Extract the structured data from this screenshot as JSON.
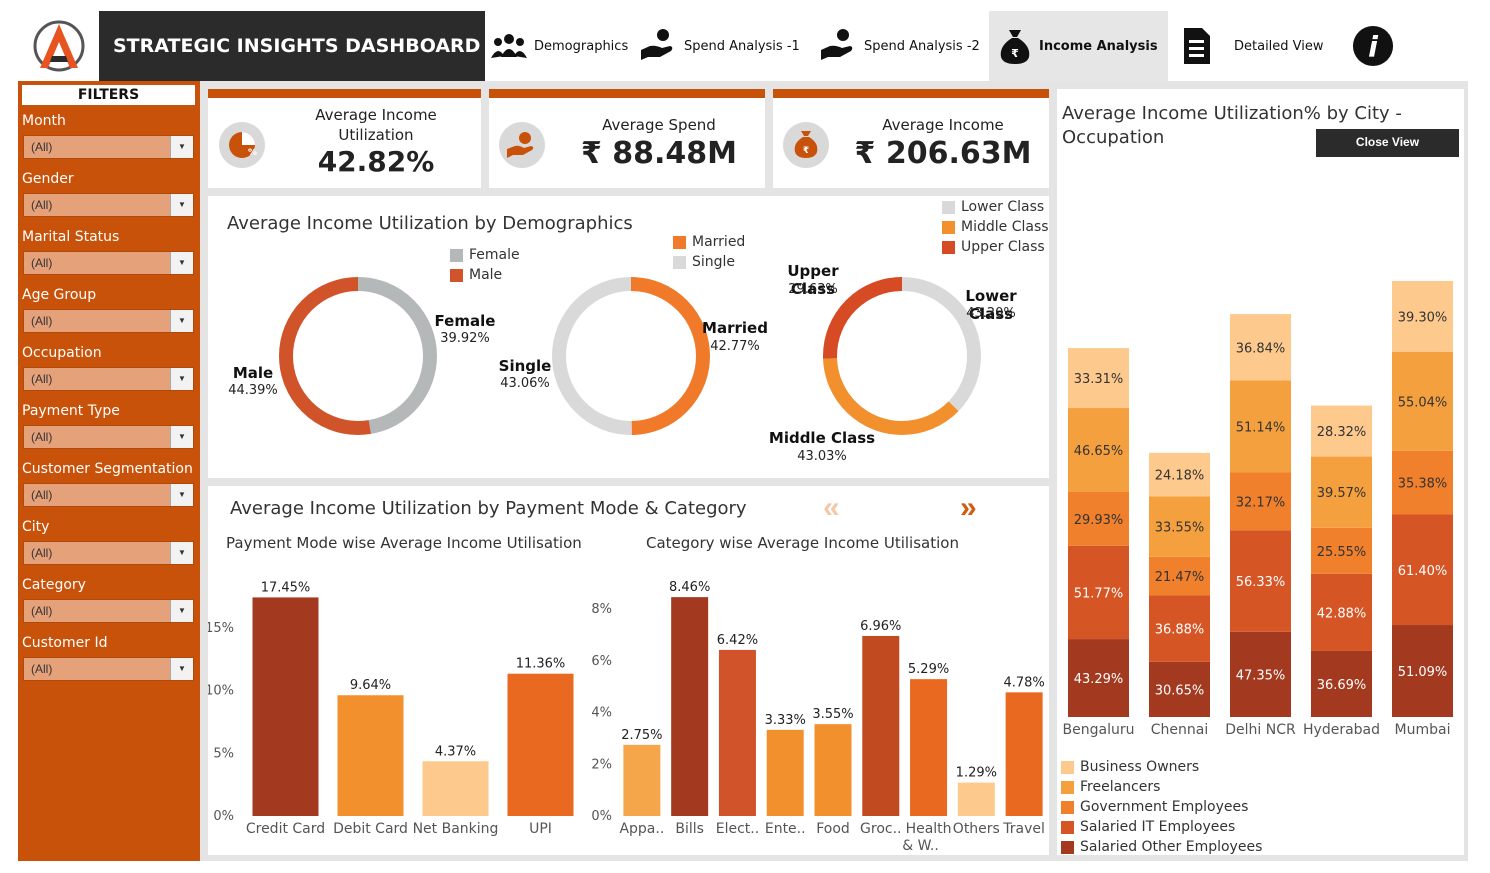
{
  "header": {
    "title": "STRATEGIC INSIGHTS DASHBOARD",
    "tabs": [
      {
        "label": "Demographics",
        "icon": "people-icon"
      },
      {
        "label": "Spend Analysis -1",
        "icon": "hand-coin-icon"
      },
      {
        "label": "Spend Analysis -2",
        "icon": "hand-coin-icon"
      },
      {
        "label": "Income Analysis",
        "icon": "money-bag-icon",
        "active": true
      },
      {
        "label": "Detailed View",
        "icon": "document-icon"
      },
      {
        "label": "",
        "icon": "info-icon"
      }
    ]
  },
  "filters": {
    "title": "FILTERS",
    "items": [
      {
        "label": "Month",
        "value": "(All)"
      },
      {
        "label": "Gender",
        "value": "(All)"
      },
      {
        "label": "Marital Status",
        "value": "(All)"
      },
      {
        "label": "Age Group",
        "value": "(All)"
      },
      {
        "label": "Occupation",
        "value": "(All)"
      },
      {
        "label": "Payment Type",
        "value": "(All)"
      },
      {
        "label": "Customer Segmentation",
        "value": "(All)"
      },
      {
        "label": "City",
        "value": "(All)"
      },
      {
        "label": "Category",
        "value": "(All)"
      },
      {
        "label": "Customer Id",
        "value": "(All)"
      }
    ]
  },
  "kpis": [
    {
      "title1": "Average Income",
      "title2": "Utilization",
      "value": "42.82%",
      "icon": "pie-percent-icon"
    },
    {
      "title1": "Average Spend",
      "title2": "",
      "value": "₹ 88.48M",
      "icon": "hand-coin-icon"
    },
    {
      "title1": "Average Income",
      "title2": "",
      "value": "₹ 206.63M",
      "icon": "money-bag-icon"
    }
  ],
  "colors": {
    "accent": "#c8520a",
    "dark": "#2b2b2b",
    "female": "#b5b8b9",
    "male": "#d0532a",
    "married": "#f07a2a",
    "single": "#d9d9d9",
    "lower": "#d9d9d9",
    "middle": "#f2902e",
    "upper": "#d64a24"
  },
  "demographics": {
    "title": "Average Income Utilization by Demographics",
    "gender": {
      "legend": [
        "Female",
        "Male"
      ],
      "labels": [
        {
          "name": "Female",
          "value": "39.92%"
        },
        {
          "name": "Male",
          "value": "44.39%"
        }
      ],
      "values": [
        39.92,
        44.39
      ]
    },
    "marital": {
      "legend": [
        "Married",
        "Single"
      ],
      "labels": [
        {
          "name": "Married",
          "value": "42.77%"
        },
        {
          "name": "Single",
          "value": "43.06%"
        }
      ],
      "values": [
        42.77,
        43.06
      ]
    },
    "class": {
      "legend": [
        "Lower Class",
        "Middle Class",
        "Upper Class"
      ],
      "labels": [
        {
          "name": "Upper Class",
          "value": "29.63%"
        },
        {
          "name": "Lower Class",
          "value": "43.20%"
        },
        {
          "name": "Middle Class",
          "value": "43.03%"
        }
      ],
      "values": [
        43.2,
        43.03,
        29.63
      ]
    }
  },
  "payment": {
    "title": "Average Income Utilization by Payment Mode & Category",
    "sub1": "Payment Mode wise Average Income Utilisation",
    "sub2": "Category wise Average Income Utilisation",
    "nav_prev": "«",
    "nav_next": "»"
  },
  "city": {
    "title1": "Average Income Utilization% by City -",
    "title2": "Occupation",
    "close_label": "Close View"
  },
  "chart_data": [
    {
      "type": "bar",
      "title": "Payment Mode wise Average Income Utilisation",
      "categories": [
        "Credit Card",
        "Debit Card",
        "Net Banking",
        "UPI"
      ],
      "values": [
        17.45,
        9.64,
        4.37,
        11.36
      ],
      "labels": [
        "17.45%",
        "9.64%",
        "4.37%",
        "11.36%"
      ],
      "yticks": [
        "0%",
        "5%",
        "10%",
        "15%"
      ],
      "ylim": [
        0,
        19
      ],
      "colors": [
        "#a33a20",
        "#f2902e",
        "#fdc98c",
        "#e8691f"
      ]
    },
    {
      "type": "bar",
      "title": "Category wise Average Income Utilisation",
      "categories": [
        "Appa..",
        "Bills",
        "Elect..",
        "Ente..",
        "Food",
        "Groc..",
        "Health & W..",
        "Others",
        "Travel"
      ],
      "values": [
        2.75,
        8.46,
        6.42,
        3.33,
        3.55,
        6.96,
        5.29,
        1.29,
        4.78
      ],
      "labels": [
        "2.75%",
        "8.46%",
        "6.42%",
        "3.33%",
        "3.55%",
        "6.96%",
        "5.29%",
        "1.29%",
        "4.78%"
      ],
      "yticks": [
        "0%",
        "2%",
        "4%",
        "6%",
        "8%"
      ],
      "ylim": [
        0,
        9.2
      ],
      "colors": [
        "#f5a64a",
        "#a33a20",
        "#d0532a",
        "#f2902e",
        "#f2902e",
        "#c24a20",
        "#e8691f",
        "#fdc98c",
        "#e8691f"
      ]
    },
    {
      "type": "bar",
      "stacked": true,
      "title": "Average Income Utilization% by City - Occupation",
      "categories": [
        "Bengaluru",
        "Chennai",
        "Delhi NCR",
        "Hyderabad",
        "Mumbai"
      ],
      "series": [
        {
          "name": "Salaried Other Employees",
          "color": "#a33a20",
          "values": [
            43.29,
            30.65,
            47.35,
            36.69,
            51.09
          ],
          "labels": [
            "43.29%",
            "30.65%",
            "47.35%",
            "36.69%",
            "51.09%"
          ]
        },
        {
          "name": "Salaried IT Employees",
          "color": "#d55525",
          "values": [
            51.77,
            36.88,
            56.33,
            42.88,
            61.4
          ],
          "labels": [
            "51.77%",
            "36.88%",
            "56.33%",
            "42.88%",
            "61.40%"
          ]
        },
        {
          "name": "Government Employees",
          "color": "#f0802c",
          "values": [
            29.93,
            21.47,
            32.17,
            25.55,
            35.38
          ],
          "labels": [
            "29.93%",
            "21.47%",
            "32.17%",
            "25.55%",
            "35.38%"
          ]
        },
        {
          "name": "Freelancers",
          "color": "#f5a03e",
          "values": [
            46.65,
            33.55,
            51.14,
            39.57,
            55.04
          ],
          "labels": [
            "46.65%",
            "33.55%",
            "51.14%",
            "39.57%",
            "55.04%"
          ]
        },
        {
          "name": "Business Owners",
          "color": "#fdc98c",
          "values": [
            33.31,
            24.18,
            36.84,
            28.32,
            39.3
          ],
          "labels": [
            "33.31%",
            "24.18%",
            "36.84%",
            "28.32%",
            "39.30%"
          ]
        }
      ],
      "legend": [
        "Business Owners",
        "Freelancers",
        "Government Employees",
        "Salaried IT Employees",
        "Salaried Other Employees"
      ]
    }
  ]
}
